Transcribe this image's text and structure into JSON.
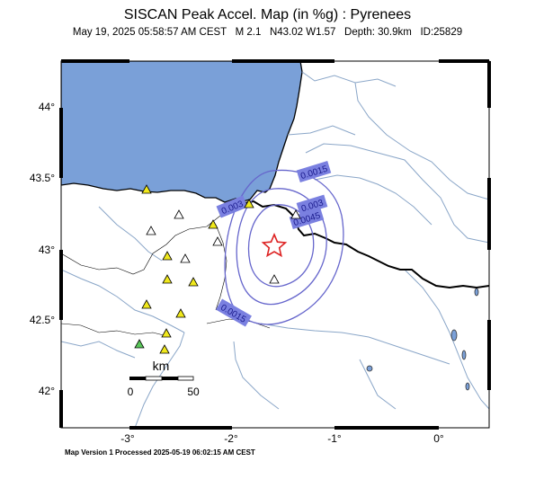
{
  "header": {
    "title": "SISCAN Peak Accel. Map (in %g) : Pyrenees",
    "date": "May 19, 2025 05:58:57 AM CEST",
    "magnitude": "M 2.1",
    "location": "N43.02 W1.57",
    "depth": "Depth: 30.9km",
    "id": "ID:25829"
  },
  "axes": {
    "lat_labels": [
      "44°",
      "43.5°",
      "43°",
      "42.5°",
      "42°"
    ],
    "lon_labels": [
      "-3°",
      "-2°",
      "-1°",
      "0°"
    ]
  },
  "contours": {
    "labels": [
      "0.0015",
      "0.003",
      "0.0045",
      "0.003",
      "0.0015"
    ]
  },
  "scale_bar": {
    "unit": "km",
    "start": "0",
    "end": "50"
  },
  "footer": {
    "text": "Map Version 1 Processed 2025-05-19 06:02:15 AM CEST"
  },
  "colors": {
    "sea": "#7aa0d8",
    "contour": "#6666cc",
    "station_yellow": "#f0e81c",
    "station_green": "#5ac85a",
    "epicenter": "#dd2222",
    "river": "#8aa6c8",
    "label_box": "#7a80e0"
  }
}
